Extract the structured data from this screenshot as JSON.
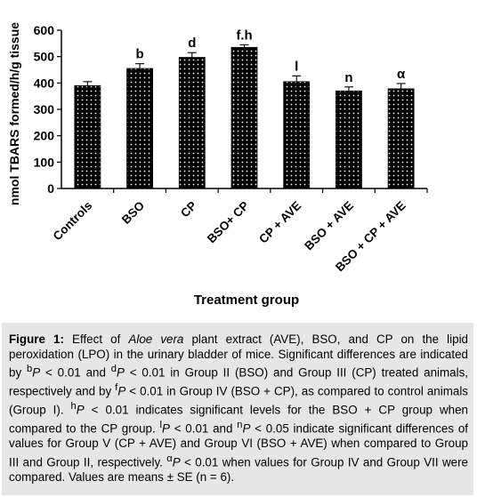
{
  "chart_data": {
    "type": "bar",
    "title": "",
    "xlabel": "Treatment group",
    "ylabel": "nmol TBARS formed/h/g tissue",
    "ylim": [
      0,
      600
    ],
    "yticks": [
      "0",
      "100",
      "200",
      "300",
      "400",
      "500",
      "600"
    ],
    "categories": [
      "Controls",
      "BSO",
      "CP",
      "BSO+ CP",
      "CP + AVE",
      "BSO + AVE",
      "BSO + CP + AVE"
    ],
    "values": [
      390,
      455,
      497,
      535,
      405,
      370,
      378
    ],
    "errors": [
      15,
      18,
      18,
      10,
      22,
      15,
      20
    ],
    "annotations": [
      "",
      "b",
      "d",
      "f.h",
      "l",
      "n",
      "α"
    ],
    "bar_fill": "#000000",
    "dot_color": "#ffffff",
    "grid": false,
    "legend": "none"
  },
  "caption": {
    "label": "Figure 1:",
    "s1": " Effect of ",
    "s1_italic": "Aloe vera",
    "s2": " plant extract (AVE), BSO, and CP on the lipid peroxidation (LPO) in the urinary bladder of mice. Significant differences are indicated by ",
    "b_sup": "b",
    "p1": "P",
    "s3": " < 0.01 and ",
    "d_sup": "d",
    "p2": "P",
    "s4": " < 0.01 in Group II (BSO) and Group III (CP) treated animals, respectively and by ",
    "f_sup": "f",
    "p3": "P",
    "s5": " < 0.01 in Group IV (BSO + CP), as compared to control animals (Group I). ",
    "h_sup": "h",
    "p4": "P",
    "s6": " < 0.01 indicates significant levels for the BSO + CP group when compared to the CP group. ",
    "l_sup": "l",
    "p5": "P",
    "s7": " < 0.01 and ",
    "n_sup": "n",
    "p6": "P",
    "s8": " < 0.05 indicate significant differences of values for Group V (CP + AVE) and Group VI (BSO + AVE) when compared to Group III and Group II, respectively. ",
    "a_sup": "α",
    "p7": "P",
    "s9": " < 0.01 when values for Group IV and Group VII were compared. Values are means ± SE (n = 6)."
  }
}
